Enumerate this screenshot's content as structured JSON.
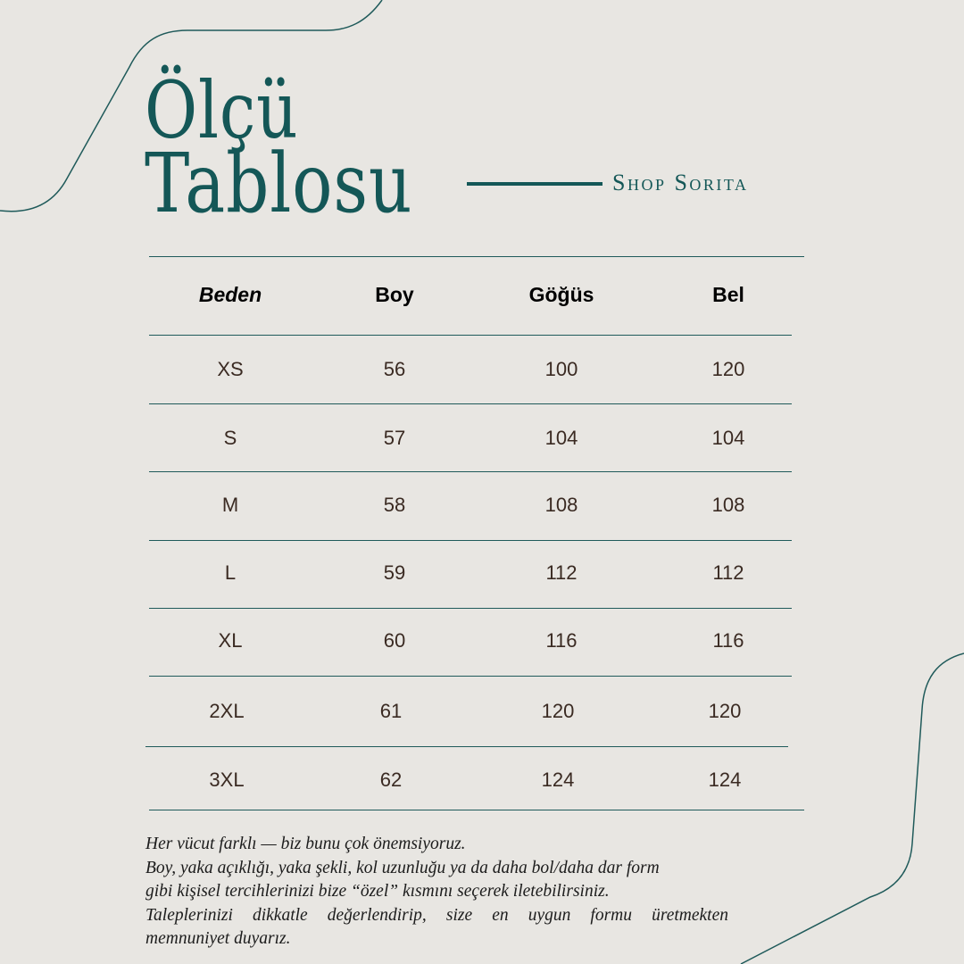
{
  "title_line1": "Ölçü",
  "title_line2": "Tablosu",
  "brand": "Shop Sorita",
  "colors": {
    "accent": "#145757",
    "background": "#e8e6e2",
    "value_text": "#3a2a22"
  },
  "table": {
    "headers": [
      "Beden",
      "Boy",
      "Göğüs",
      "Bel"
    ],
    "rows": [
      [
        "XS",
        "56",
        "100",
        "120"
      ],
      [
        "S",
        "57",
        "104",
        "104"
      ],
      [
        "M",
        "58",
        "108",
        "108"
      ],
      [
        "L",
        "59",
        "112",
        "112"
      ],
      [
        "XL",
        "60",
        "116",
        "116"
      ],
      [
        "2XL",
        "61",
        "120",
        "120"
      ],
      [
        "3XL",
        "62",
        "124",
        "124"
      ]
    ]
  },
  "note": [
    "Her vücut farklı — biz bunu çok önemsiyoruz.",
    "Boy, yaka açıklığı, yaka şekli, kol uzunluğu ya da daha bol/daha dar form",
    "gibi kişisel tercihlerinizi bize “özel” kısmını seçerek iletebilirsiniz.",
    "Taleplerinizi dikkatle değerlendirip, size en uygun formu üretmekten",
    "memnuniyet duyarız."
  ]
}
